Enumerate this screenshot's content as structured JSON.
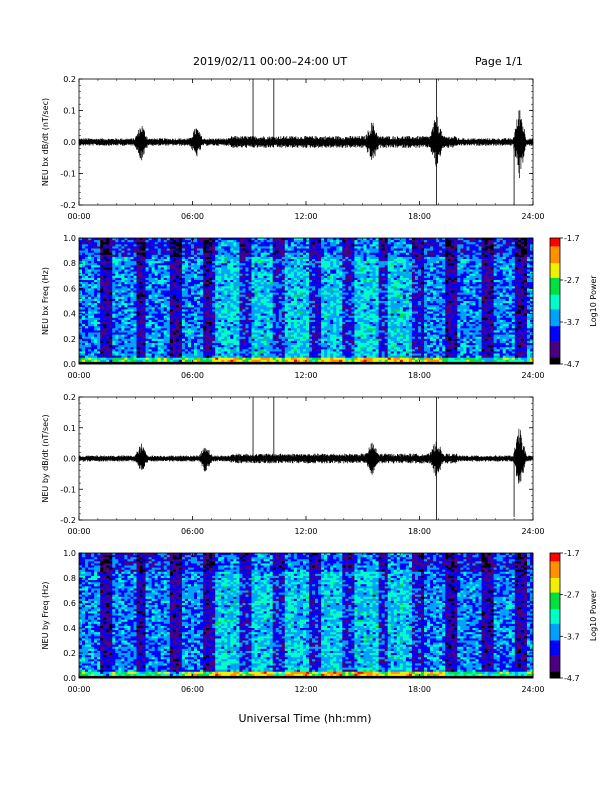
{
  "header": {
    "date_range": "2019/02/11  00:00–24:00 UT",
    "page": "Page 1/1"
  },
  "xlabel": "Universal Time (hh:mm)",
  "colorbar": {
    "ticks": [
      "-1.7",
      "-2.7",
      "-3.7",
      "-4.7"
    ],
    "label": "Log10 Power",
    "colors": [
      "#000000",
      "#4b0082",
      "#0000ff",
      "#00a0ff",
      "#00ffc8",
      "#00e040",
      "#f0f000",
      "#ff9000",
      "#ff0000"
    ]
  },
  "chart_data": [
    {
      "type": "line",
      "ylabel": "NEU bx dB/dt (nT/sec)",
      "xticks": [
        "00:00",
        "06:00",
        "12:00",
        "18:00",
        "24:00"
      ],
      "yticks": [
        "0.2",
        "0.1",
        "0.0",
        "-0.1",
        "-0.2"
      ],
      "xlim": [
        0,
        24
      ],
      "ylim": [
        -0.2,
        0.2
      ],
      "baseline_amplitude": 0.012,
      "activity": [
        {
          "t": 3.3,
          "amp": 0.05
        },
        {
          "t": 6.2,
          "amp": 0.04
        },
        {
          "t": 15.5,
          "amp": 0.05
        },
        {
          "t": 18.9,
          "amp": 0.07
        },
        {
          "t": 23.3,
          "amp": 0.11
        }
      ],
      "spikes": [
        {
          "t": 9.2,
          "y": 0.2
        },
        {
          "t": 10.3,
          "y": 0.2
        },
        {
          "t": 18.9,
          "y": 0.2
        },
        {
          "t": 18.9,
          "y": -0.2
        },
        {
          "t": 23.0,
          "y": -0.2
        }
      ]
    },
    {
      "type": "heatmap",
      "ylabel": "NEU bx Freq (Hz)",
      "xticks": [
        "00:00",
        "06:00",
        "12:00",
        "18:00",
        "24:00"
      ],
      "yticks": [
        "1.0",
        "0.8",
        "0.6",
        "0.4",
        "0.2",
        "0.0"
      ],
      "xlim": [
        0,
        24
      ],
      "ylim": [
        0.0,
        1.0
      ],
      "zlim": [
        -4.7,
        -1.7
      ]
    },
    {
      "type": "line",
      "ylabel": "NEU by dB/dt (nT/sec)",
      "xticks": [
        "00:00",
        "06:00",
        "12:00",
        "18:00",
        "24:00"
      ],
      "yticks": [
        "0.2",
        "0.1",
        "0.0",
        "-0.1",
        "-0.2"
      ],
      "xlim": [
        0,
        24
      ],
      "ylim": [
        -0.2,
        0.2
      ],
      "baseline_amplitude": 0.01,
      "activity": [
        {
          "t": 3.3,
          "amp": 0.04
        },
        {
          "t": 6.7,
          "amp": 0.04
        },
        {
          "t": 15.5,
          "amp": 0.04
        },
        {
          "t": 18.9,
          "amp": 0.05
        },
        {
          "t": 23.3,
          "amp": 0.1
        }
      ],
      "spikes": [
        {
          "t": 9.2,
          "y": 0.2
        },
        {
          "t": 10.3,
          "y": 0.2
        },
        {
          "t": 18.9,
          "y": 0.2
        },
        {
          "t": 18.9,
          "y": -0.2
        },
        {
          "t": 23.0,
          "y": -0.19
        }
      ]
    },
    {
      "type": "heatmap",
      "ylabel": "NEU by Freq (Hz)",
      "xticks": [
        "00:00",
        "06:00",
        "12:00",
        "18:00",
        "24:00"
      ],
      "yticks": [
        "1.0",
        "0.8",
        "0.6",
        "0.4",
        "0.2",
        "0.0"
      ],
      "xlim": [
        0,
        24
      ],
      "ylim": [
        0.0,
        1.0
      ],
      "zlim": [
        -4.7,
        -1.7
      ]
    }
  ]
}
